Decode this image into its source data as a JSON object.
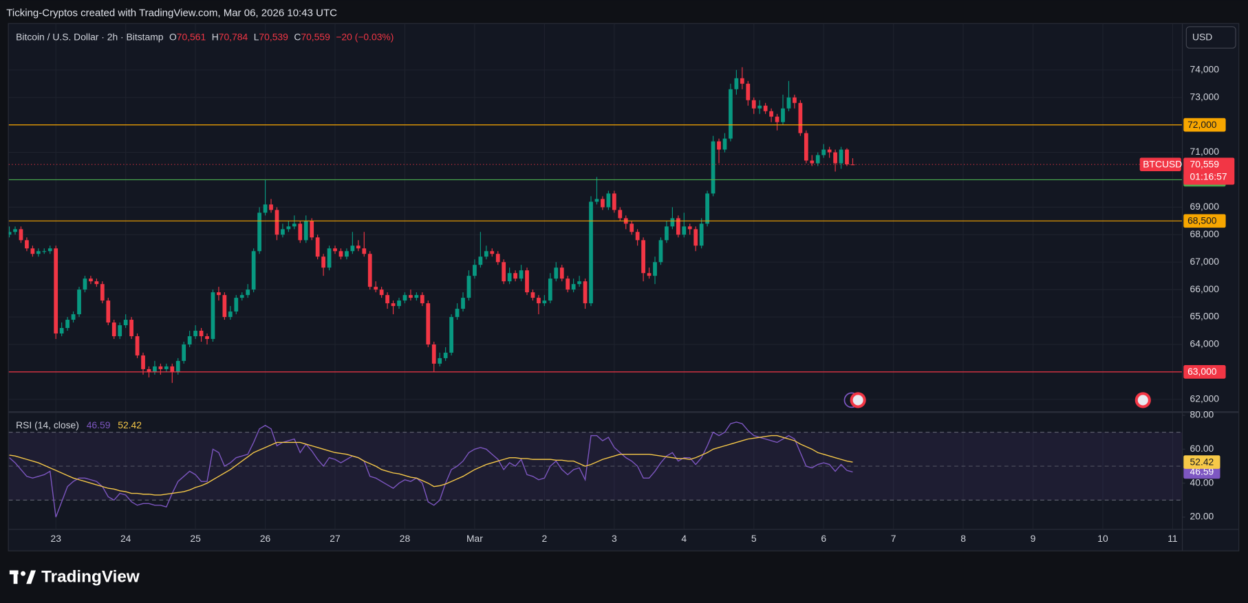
{
  "header": {
    "attribution": "Ticking-Cryptos created with TradingView.com, Mar 06, 2026 10:43 UTC",
    "currency": "USD",
    "brand": "TradingView"
  },
  "legend": {
    "symbol": "Bitcoin / U.S. Dollar · 2h · Bitstamp",
    "o_label": "O",
    "o": "70,561",
    "h_label": "H",
    "h": "70,784",
    "l_label": "L",
    "l": "70,539",
    "c_label": "C",
    "c": "70,559",
    "change": "−20 (−0.03%)"
  },
  "chart_data": [
    {
      "type": "candlestick",
      "up_color": "#089981",
      "down_color": "#f23645",
      "grid": true,
      "xlim": [
        -0.1,
        201.6
      ],
      "xticks": [
        {
          "value": 8,
          "label": "23"
        },
        {
          "value": 20,
          "label": "24"
        },
        {
          "value": 32,
          "label": "25"
        },
        {
          "value": 44,
          "label": "26"
        },
        {
          "value": 56,
          "label": "27"
        },
        {
          "value": 68,
          "label": "28"
        },
        {
          "value": 80,
          "label": "Mar"
        },
        {
          "value": 92,
          "label": "2"
        },
        {
          "value": 104,
          "label": "3"
        },
        {
          "value": 116,
          "label": "4"
        },
        {
          "value": 128,
          "label": "5"
        },
        {
          "value": 140,
          "label": "6"
        },
        {
          "value": 152,
          "label": "7"
        },
        {
          "value": 164,
          "label": "8"
        },
        {
          "value": 176,
          "label": "9"
        },
        {
          "value": 188,
          "label": "10"
        },
        {
          "value": 200,
          "label": "11"
        }
      ],
      "ylim": [
        61565,
        75680
      ],
      "yticks": [
        {
          "value": 62000,
          "label": "62,000"
        },
        {
          "value": 63000,
          "label": "63,000"
        },
        {
          "value": 64000,
          "label": "64,000"
        },
        {
          "value": 65000,
          "label": "65,000"
        },
        {
          "value": 66000,
          "label": "66,000"
        },
        {
          "value": 67000,
          "label": "67,000"
        },
        {
          "value": 68000,
          "label": "68,000"
        },
        {
          "value": 69000,
          "label": "69,000"
        },
        {
          "value": 70000,
          "label": "70,000"
        },
        {
          "value": 71000,
          "label": "71,000"
        },
        {
          "value": 72000,
          "label": "72,000"
        },
        {
          "value": 73000,
          "label": "73,000"
        },
        {
          "value": 74000,
          "label": "74,000"
        }
      ],
      "levels": [
        {
          "value": 72000,
          "label": "72,000",
          "color": "#f7a600"
        },
        {
          "value": 70000,
          "label": "70,000",
          "color": "#4caf50"
        },
        {
          "value": 68500,
          "label": "68,500",
          "color": "#f7a600"
        },
        {
          "value": 63000,
          "label": "63,000",
          "color": "#f23645"
        }
      ],
      "last_price": {
        "value": 70559,
        "label": "70,559",
        "symbol": "BTCUSD",
        "countdown": "01:16:57",
        "color": "#f23645"
      },
      "open": [
        68000,
        68100,
        68200,
        67800,
        67500,
        67300,
        67400,
        67400,
        67500,
        64400,
        64600,
        64900,
        65100,
        66000,
        66400,
        66300,
        66200,
        65600,
        64800,
        64300,
        64700,
        64900,
        64300,
        63600,
        63100,
        63000,
        63200,
        63100,
        63200,
        63000,
        63400,
        64000,
        64300,
        64500,
        64300,
        64200,
        65900,
        65800,
        65000,
        65200,
        65700,
        65800,
        66000,
        67400,
        68800,
        69100,
        68900,
        68000,
        68200,
        68300,
        68400,
        67800,
        68500,
        67900,
        67200,
        66800,
        67500,
        67400,
        67200,
        67400,
        67600,
        67500,
        67300,
        66100,
        66000,
        65800,
        65500,
        65400,
        65600,
        65800,
        65700,
        65800,
        65500,
        64000,
        63300,
        63500,
        63700,
        65000,
        65300,
        65700,
        66500,
        66900,
        67200,
        67400,
        67300,
        67000,
        66300,
        66600,
        66400,
        66700,
        65900,
        65700,
        65500,
        65600,
        66400,
        66800,
        66400,
        66000,
        66200,
        66300,
        65500,
        69200,
        69300,
        69000,
        69500,
        68900,
        68600,
        68400,
        68100,
        67800,
        66600,
        66500,
        67000,
        67800,
        68300,
        68600,
        68000,
        68300,
        68200,
        67600,
        68400,
        69500,
        71400,
        71100,
        71500,
        73300,
        73700,
        73500,
        72900,
        72600,
        72700,
        72500,
        72300,
        72100,
        72600,
        73000,
        72800,
        71700,
        70700,
        70600,
        70900,
        71100,
        71000,
        70600,
        71100,
        70561
      ],
      "high": [
        68300,
        68300,
        68300,
        67900,
        67600,
        67500,
        67500,
        67600,
        67600,
        64800,
        65000,
        65200,
        66100,
        66500,
        66500,
        66400,
        66300,
        65700,
        64900,
        64800,
        65100,
        65000,
        64400,
        63700,
        63200,
        63400,
        63300,
        63300,
        63300,
        63500,
        64100,
        64500,
        64700,
        64600,
        64400,
        66000,
        66100,
        65900,
        65400,
        65800,
        65900,
        66200,
        67500,
        69000,
        70000,
        69300,
        69000,
        68400,
        68500,
        68700,
        68500,
        68700,
        68600,
        68000,
        67300,
        67600,
        67600,
        67500,
        67500,
        68100,
        67800,
        68100,
        67400,
        66300,
        66100,
        65900,
        65600,
        65700,
        65900,
        66000,
        65900,
        65900,
        65600,
        64100,
        63700,
        63900,
        65100,
        65500,
        65900,
        66700,
        67100,
        68100,
        67600,
        67500,
        67400,
        67100,
        66800,
        66700,
        66900,
        66800,
        66000,
        65800,
        65800,
        66600,
        67000,
        66900,
        66500,
        66400,
        66500,
        66400,
        69400,
        70100,
        69400,
        69600,
        69600,
        69000,
        68700,
        68500,
        68200,
        67900,
        66800,
        67200,
        67900,
        68500,
        69000,
        68700,
        68800,
        68400,
        68300,
        68600,
        69600,
        71600,
        71500,
        71700,
        73500,
        74000,
        74100,
        73600,
        73000,
        72900,
        72800,
        72600,
        72400,
        73100,
        73600,
        73100,
        72900,
        71800,
        70900,
        71000,
        71300,
        71200,
        71100,
        71200,
        71150,
        70784
      ],
      "low": [
        67900,
        68000,
        67700,
        67400,
        67200,
        67200,
        67300,
        67300,
        64200,
        64300,
        64500,
        64800,
        65000,
        65900,
        66200,
        66100,
        65500,
        64700,
        64200,
        64200,
        64600,
        64200,
        63500,
        62900,
        62800,
        62900,
        62900,
        63000,
        62600,
        62900,
        63300,
        63900,
        64200,
        64100,
        64000,
        64100,
        65600,
        64900,
        64900,
        65100,
        65600,
        65700,
        65900,
        67300,
        68700,
        68800,
        67800,
        67900,
        68100,
        68200,
        67700,
        67700,
        67800,
        67100,
        66500,
        66700,
        67300,
        67100,
        67100,
        67300,
        67400,
        67200,
        66000,
        65900,
        65700,
        65300,
        65100,
        65300,
        65500,
        65600,
        65600,
        65400,
        63900,
        63000,
        63200,
        63400,
        63600,
        64900,
        65200,
        65600,
        66400,
        66800,
        67100,
        67200,
        66900,
        66200,
        66200,
        66300,
        66300,
        65800,
        65600,
        65100,
        65400,
        65500,
        66300,
        66300,
        65900,
        65900,
        66100,
        65300,
        65400,
        69100,
        68900,
        68900,
        68800,
        68500,
        68200,
        68000,
        67600,
        66300,
        66400,
        66200,
        66900,
        67700,
        68200,
        67900,
        67900,
        68000,
        67400,
        67500,
        68300,
        69400,
        70600,
        71000,
        71400,
        73100,
        73300,
        72700,
        72400,
        72400,
        72400,
        72100,
        71800,
        72000,
        72500,
        72600,
        71600,
        70600,
        70500,
        70500,
        70800,
        70800,
        70300,
        70400,
        70500,
        70539
      ],
      "close": [
        68100,
        68200,
        67800,
        67500,
        67300,
        67400,
        67400,
        67500,
        64400,
        64600,
        64900,
        65100,
        66000,
        66400,
        66300,
        66200,
        65600,
        64800,
        64300,
        64700,
        64900,
        64300,
        63600,
        63100,
        63000,
        63200,
        63100,
        63200,
        63000,
        63400,
        64000,
        64300,
        64500,
        64300,
        64200,
        65900,
        65800,
        65000,
        65200,
        65700,
        65800,
        66000,
        67400,
        68800,
        69100,
        68900,
        68000,
        68200,
        68300,
        68400,
        67800,
        68500,
        67900,
        67200,
        66800,
        67500,
        67400,
        67200,
        67400,
        67600,
        67500,
        67300,
        66100,
        66000,
        65800,
        65500,
        65400,
        65600,
        65800,
        65700,
        65800,
        65500,
        64000,
        63300,
        63500,
        63700,
        65000,
        65300,
        65700,
        66500,
        66900,
        67200,
        67400,
        67300,
        67000,
        66300,
        66600,
        66400,
        66700,
        65900,
        65700,
        65500,
        65600,
        66400,
        66800,
        66400,
        66000,
        66200,
        66300,
        65500,
        69200,
        69300,
        69000,
        69500,
        68900,
        68600,
        68400,
        68100,
        67800,
        66600,
        66500,
        67000,
        67800,
        68300,
        68600,
        68000,
        68300,
        68200,
        67600,
        68400,
        69500,
        71400,
        71100,
        71500,
        73300,
        73700,
        73500,
        72900,
        72600,
        72700,
        72500,
        72300,
        72100,
        72600,
        73000,
        72800,
        71700,
        70700,
        70600,
        70900,
        71100,
        71000,
        70600,
        71100,
        70561,
        70559
      ]
    },
    {
      "type": "line",
      "title": "RSI (14, close)",
      "grid": true,
      "ylim": [
        13,
        81.4
      ],
      "yticks": [
        {
          "value": 20,
          "label": "20.00"
        },
        {
          "value": 40,
          "label": "40.00"
        },
        {
          "value": 60,
          "label": "60.00"
        },
        {
          "value": 80,
          "label": "80.00"
        }
      ],
      "band": [
        30,
        70
      ],
      "midline": 50,
      "series": [
        {
          "color": "#7e57c2",
          "last_label": "46.59",
          "values": [
            55,
            52,
            48,
            44,
            43,
            44,
            45,
            47,
            20,
            29,
            38,
            41,
            43,
            43,
            42,
            41,
            38,
            32,
            30,
            34,
            33,
            29,
            27,
            28,
            28,
            27,
            27,
            26,
            34,
            41,
            44,
            47,
            45,
            41,
            41,
            60,
            58,
            50,
            52,
            55,
            56,
            57,
            64,
            72,
            74,
            72,
            62,
            64,
            65,
            66,
            58,
            63,
            59,
            54,
            50,
            55,
            54,
            52,
            54,
            56,
            55,
            53,
            44,
            43,
            41,
            39,
            37,
            40,
            42,
            41,
            43,
            40,
            29,
            27,
            30,
            40,
            48,
            50,
            53,
            58,
            60,
            61,
            60,
            57,
            54,
            48,
            52,
            50,
            54,
            45,
            44,
            42,
            43,
            50,
            53,
            48,
            45,
            48,
            49,
            42,
            68,
            68,
            65,
            67,
            61,
            58,
            55,
            53,
            50,
            43,
            43,
            47,
            52,
            56,
            58,
            53,
            55,
            55,
            51,
            55,
            62,
            70,
            68,
            70,
            75,
            76,
            75,
            71,
            68,
            67,
            66,
            65,
            64,
            66,
            68,
            66,
            58,
            50,
            49,
            51,
            52,
            51,
            47,
            51,
            47.5,
            46.59
          ]
        },
        {
          "color": "#f7c948",
          "last_label": "52.42",
          "values": [
            56.5,
            56,
            55,
            54,
            53,
            52,
            50.5,
            49,
            47.5,
            46,
            44.5,
            43,
            42,
            41,
            40,
            39,
            38,
            37,
            36.5,
            35.5,
            35,
            34,
            34,
            33.5,
            33.5,
            33,
            33,
            33.5,
            34,
            34.5,
            35,
            36,
            37.5,
            38.5,
            40,
            42,
            44,
            46,
            48,
            50.5,
            53,
            55.5,
            58,
            59.5,
            61,
            62.5,
            64,
            64,
            64,
            64,
            64,
            63,
            62,
            61,
            60,
            59,
            58,
            57.5,
            57,
            56,
            55,
            53,
            51.5,
            50,
            48,
            47,
            46,
            45.5,
            44.5,
            43.5,
            43,
            41.5,
            40,
            38,
            38.5,
            39.5,
            41,
            42.5,
            44,
            46,
            48,
            49.5,
            51,
            52,
            53,
            54,
            55,
            55,
            54.5,
            54.5,
            54,
            54,
            54,
            54,
            53.5,
            53.5,
            53,
            53,
            51.5,
            50,
            51,
            52.5,
            54,
            55,
            56,
            57,
            57,
            57,
            57,
            57,
            57,
            56.5,
            56,
            55.5,
            55,
            54.5,
            54.5,
            54,
            55,
            56.5,
            58,
            60,
            61,
            62,
            63,
            64,
            65,
            66,
            66.5,
            67,
            67.5,
            68,
            68,
            67,
            66,
            65,
            63,
            61.5,
            60,
            58,
            57,
            56,
            55,
            54,
            53,
            52.42
          ]
        }
      ]
    }
  ]
}
